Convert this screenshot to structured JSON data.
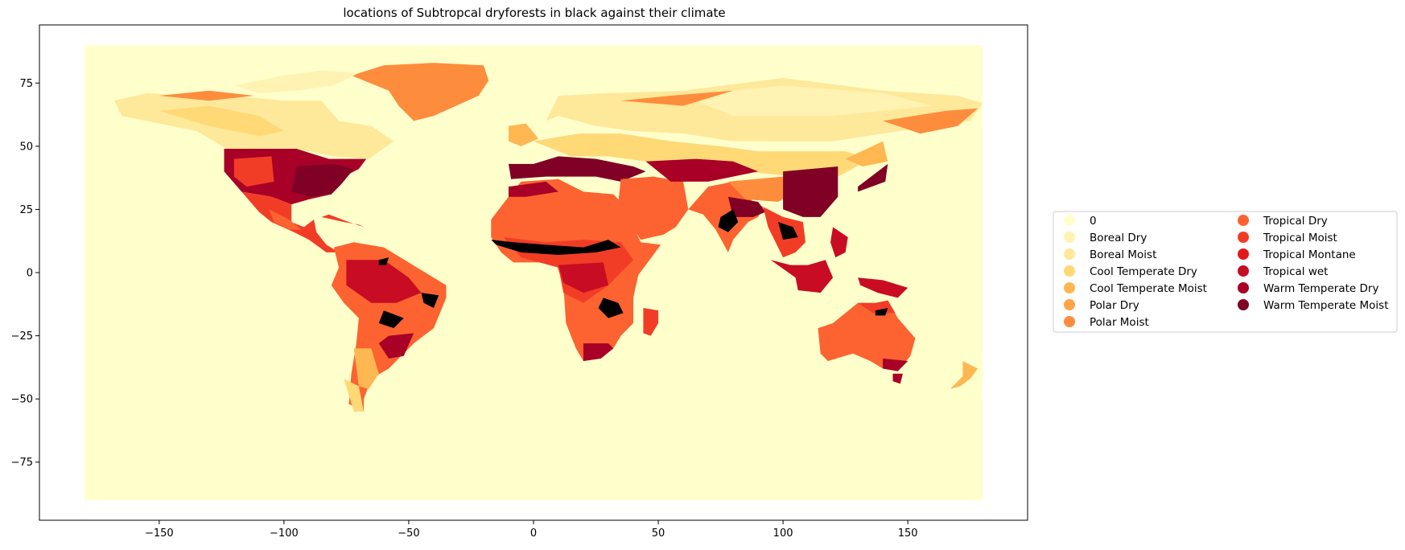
{
  "chart_data": {
    "type": "map",
    "title": "locations of Subtropcal dryforests in black against their climate",
    "xlabel": "",
    "ylabel": "",
    "xlim": [
      -198,
      198
    ],
    "ylim": [
      -98,
      98
    ],
    "xticks": [
      -150,
      -100,
      -50,
      0,
      50,
      100,
      150
    ],
    "yticks": [
      75,
      50,
      25,
      0,
      -25,
      -50,
      -75
    ],
    "xtick_labels": [
      "−150",
      "−100",
      "−50",
      "0",
      "50",
      "100",
      "150"
    ],
    "ytick_labels": [
      "75",
      "50",
      "25",
      "0",
      "−25",
      "−50",
      "−75"
    ],
    "grid": false,
    "legend_placement": "center-right outside",
    "legend_columns": 2,
    "highlight_color": "#000000",
    "background_class_color": "#ffffcc",
    "legend": [
      {
        "label": "0",
        "color": "#ffffcc"
      },
      {
        "label": "Boreal Dry",
        "color": "#fff3b3"
      },
      {
        "label": "Boreal Moist",
        "color": "#fee89a"
      },
      {
        "label": "Cool Temperate Dry",
        "color": "#fed976"
      },
      {
        "label": "Cool Temperate Moist",
        "color": "#feb751"
      },
      {
        "label": "Polar Dry",
        "color": "#fea446"
      },
      {
        "label": "Polar Moist",
        "color": "#fd8d3c"
      },
      {
        "label": "Tropical Dry",
        "color": "#fc6330"
      },
      {
        "label": "Tropical Moist",
        "color": "#f23d26"
      },
      {
        "label": "Tropical Montane",
        "color": "#e31a1c"
      },
      {
        "label": "Tropical wet",
        "color": "#c80c23"
      },
      {
        "label": "Warm Temperate Dry",
        "color": "#a80026"
      },
      {
        "label": "Warm Temperate Moist",
        "color": "#800026"
      }
    ]
  }
}
